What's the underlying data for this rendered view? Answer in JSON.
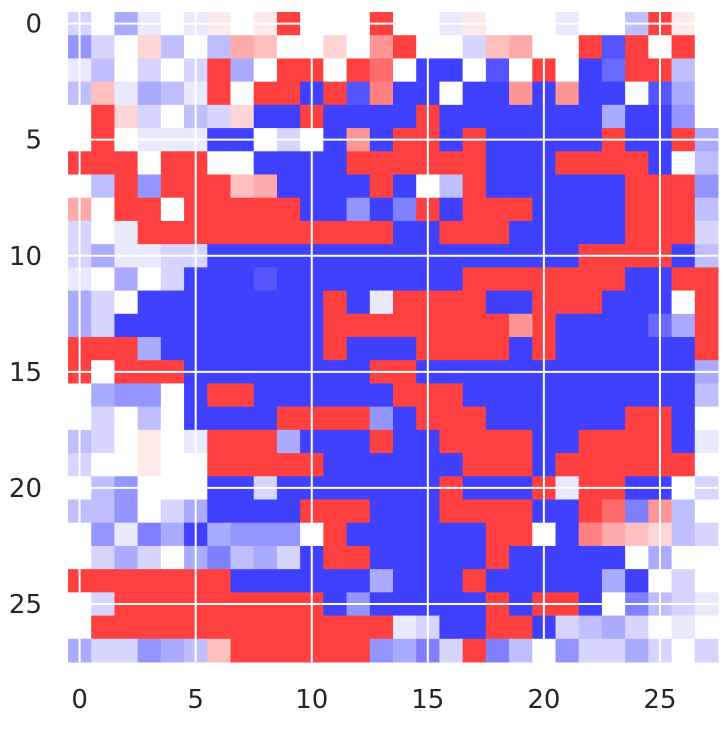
{
  "chart_data": {
    "type": "heatmap",
    "title": "",
    "xlabel": "",
    "ylabel": "",
    "colormap": "bwr",
    "vmin": -1,
    "vmax": 1,
    "grid": true,
    "grid_color": "#ffffff",
    "x_ticks": [
      0,
      5,
      10,
      15,
      20,
      25
    ],
    "x_tick_labels": [
      "0",
      "5",
      "10",
      "15",
      "20",
      "25"
    ],
    "y_ticks": [
      0,
      5,
      10,
      15,
      20,
      25
    ],
    "y_tick_labels": [
      "0",
      "5",
      "10",
      "15",
      "20",
      "25"
    ],
    "xlim": [
      -0.5,
      27.5
    ],
    "ylim": [
      27.5,
      -0.5
    ],
    "rows": 28,
    "cols": 28,
    "values": [
      [
        -0.2,
        0.0,
        -0.4,
        -0.1,
        0.0,
        -0.1,
        0.1,
        0.0,
        0.1,
        0.9,
        0.0,
        0.0,
        0.0,
        0.9,
        0.0,
        0.0,
        -0.1,
        0.1,
        0.0,
        0.0,
        0.0,
        -0.1,
        0.0,
        0.0,
        -0.3,
        0.9,
        0.1,
        0.0
      ],
      [
        -0.5,
        -0.2,
        0.0,
        0.2,
        -0.3,
        0.0,
        -0.3,
        0.4,
        0.3,
        0.0,
        0.0,
        0.2,
        0.0,
        0.5,
        0.9,
        0.0,
        0.0,
        -0.2,
        0.3,
        0.4,
        0.0,
        0.0,
        0.9,
        -0.8,
        0.9,
        0.0,
        0.9,
        0.0
      ],
      [
        -0.1,
        -0.3,
        0.0,
        -0.2,
        0.0,
        -0.2,
        0.9,
        -0.4,
        0.0,
        0.9,
        0.9,
        0.0,
        0.9,
        0.7,
        0.0,
        -0.9,
        -0.9,
        0.0,
        -0.8,
        0.0,
        0.9,
        0.0,
        -0.9,
        -0.7,
        0.9,
        0.9,
        -0.3,
        0.0
      ],
      [
        -0.3,
        0.3,
        -0.1,
        -0.4,
        -0.3,
        -0.1,
        0.9,
        0.0,
        0.9,
        0.9,
        -0.9,
        0.9,
        -0.8,
        0.6,
        -0.9,
        -0.9,
        0.0,
        -0.9,
        -0.9,
        0.5,
        -0.9,
        0.5,
        -0.9,
        -0.9,
        0.0,
        -0.8,
        -0.4,
        0.0
      ],
      [
        0.0,
        0.9,
        0.2,
        -0.2,
        0.0,
        -0.3,
        -0.2,
        0.2,
        -0.9,
        -0.9,
        0.9,
        -0.9,
        -0.9,
        -0.9,
        -0.9,
        0.9,
        -0.9,
        -0.9,
        -0.9,
        -0.9,
        -0.9,
        -0.9,
        -0.9,
        -0.4,
        -0.9,
        -0.9,
        -0.5,
        0.0
      ],
      [
        0.0,
        0.9,
        0.0,
        -0.1,
        -0.1,
        -0.1,
        -0.9,
        -0.9,
        0.0,
        -0.2,
        0.0,
        -0.9,
        0.5,
        -0.9,
        0.9,
        0.9,
        -0.9,
        0.9,
        -0.9,
        -0.9,
        -0.9,
        -0.9,
        -0.9,
        0.9,
        -0.9,
        -0.9,
        0.9,
        -0.4
      ],
      [
        0.9,
        0.9,
        0.9,
        0.0,
        0.9,
        0.9,
        0.0,
        0.0,
        -0.9,
        -0.9,
        -0.9,
        -0.9,
        0.9,
        0.9,
        0.9,
        0.9,
        0.9,
        0.9,
        -0.9,
        -0.9,
        -0.9,
        0.9,
        0.9,
        0.9,
        0.9,
        -0.9,
        0.0,
        -0.3
      ],
      [
        0.0,
        -0.3,
        0.9,
        -0.5,
        0.9,
        0.9,
        0.9,
        0.3,
        0.4,
        -0.9,
        -0.9,
        -0.9,
        -0.9,
        0.9,
        -0.9,
        0.0,
        -0.3,
        0.9,
        -0.9,
        -0.9,
        -0.9,
        -0.9,
        -0.9,
        -0.9,
        0.9,
        0.9,
        0.9,
        -0.5
      ],
      [
        0.4,
        0.0,
        0.9,
        0.9,
        0.0,
        0.9,
        0.9,
        0.9,
        0.9,
        0.9,
        -0.9,
        -0.9,
        -0.5,
        -0.9,
        -0.6,
        0.9,
        -0.9,
        0.9,
        0.9,
        0.9,
        -0.9,
        -0.9,
        -0.9,
        -0.9,
        0.9,
        0.9,
        0.9,
        -0.3
      ],
      [
        -0.2,
        0.0,
        -0.1,
        0.9,
        0.9,
        0.9,
        0.9,
        0.9,
        0.9,
        0.9,
        0.9,
        0.9,
        0.9,
        0.9,
        -0.9,
        -0.9,
        0.9,
        0.9,
        0.9,
        -0.9,
        -0.9,
        -0.9,
        -0.9,
        -0.9,
        0.9,
        0.9,
        0.9,
        -0.2
      ],
      [
        -0.2,
        -0.4,
        -0.1,
        -0.1,
        -0.2,
        -0.2,
        -0.9,
        -0.9,
        -0.9,
        -0.9,
        -0.9,
        -0.9,
        -0.9,
        -0.9,
        -0.9,
        -0.9,
        -0.9,
        -0.9,
        -0.9,
        -0.9,
        -0.9,
        -0.9,
        0.9,
        0.9,
        0.9,
        0.9,
        -0.9,
        -0.3
      ],
      [
        -0.1,
        0.0,
        -0.4,
        0.0,
        -0.2,
        -0.9,
        -0.9,
        -0.9,
        -0.8,
        -0.9,
        -0.9,
        -0.9,
        -0.9,
        -0.9,
        -0.9,
        -0.9,
        -0.9,
        0.9,
        0.9,
        0.9,
        0.9,
        0.9,
        0.9,
        0.9,
        -0.9,
        -0.9,
        0.9,
        0.9
      ],
      [
        -0.4,
        -0.2,
        0.0,
        -0.9,
        -0.9,
        -0.9,
        -0.9,
        -0.9,
        -0.9,
        -0.9,
        -0.9,
        0.9,
        -0.9,
        -0.1,
        0.9,
        0.9,
        0.9,
        0.9,
        -0.9,
        -0.9,
        0.9,
        0.9,
        0.9,
        -0.9,
        -0.9,
        -0.9,
        0.0,
        0.9
      ],
      [
        -0.4,
        -0.2,
        -0.9,
        -0.9,
        -0.9,
        -0.9,
        -0.9,
        -0.9,
        -0.9,
        -0.9,
        -0.9,
        0.9,
        0.9,
        0.9,
        0.9,
        0.9,
        0.9,
        0.9,
        0.9,
        0.5,
        0.9,
        -0.9,
        -0.9,
        -0.9,
        -0.9,
        -0.7,
        -0.4,
        0.9
      ],
      [
        0.9,
        0.9,
        0.9,
        -0.4,
        -0.9,
        -0.9,
        -0.9,
        -0.9,
        -0.9,
        -0.9,
        -0.9,
        0.9,
        -0.9,
        -0.9,
        -0.9,
        0.9,
        0.9,
        0.9,
        0.9,
        -0.9,
        0.9,
        -0.9,
        -0.9,
        -0.9,
        -0.9,
        -0.9,
        -0.9,
        0.9
      ],
      [
        0.9,
        0.0,
        0.9,
        0.9,
        0.9,
        -0.9,
        -0.9,
        -0.9,
        -0.9,
        -0.9,
        -0.9,
        -0.9,
        -0.9,
        0.9,
        0.9,
        -0.9,
        -0.9,
        -0.9,
        -0.9,
        -0.9,
        -0.9,
        -0.9,
        -0.9,
        -0.9,
        -0.9,
        -0.9,
        -0.9,
        -0.4
      ],
      [
        0.0,
        -0.4,
        -0.5,
        -0.5,
        0.0,
        -0.9,
        0.9,
        0.9,
        -0.9,
        -0.9,
        -0.9,
        -0.9,
        -0.9,
        -0.9,
        0.9,
        0.9,
        0.9,
        -0.9,
        -0.9,
        -0.9,
        -0.9,
        -0.9,
        -0.9,
        -0.9,
        -0.9,
        -0.9,
        -0.9,
        -0.3
      ],
      [
        0.0,
        -0.2,
        0.0,
        -0.3,
        0.0,
        -0.9,
        -0.9,
        -0.9,
        -0.9,
        0.9,
        0.9,
        0.9,
        0.9,
        -0.5,
        -0.9,
        0.9,
        0.9,
        0.9,
        -0.9,
        -0.9,
        -0.9,
        -0.9,
        -0.9,
        -0.9,
        0.9,
        0.9,
        -0.9,
        0.0
      ],
      [
        -0.3,
        -0.2,
        0.0,
        0.1,
        0.0,
        -0.1,
        0.9,
        0.9,
        0.9,
        -0.4,
        -0.9,
        -0.9,
        -0.9,
        0.9,
        -0.9,
        -0.9,
        0.9,
        0.9,
        0.9,
        0.9,
        -0.9,
        -0.9,
        0.9,
        0.9,
        0.9,
        0.9,
        -0.9,
        -0.1
      ],
      [
        -0.2,
        0.0,
        0.0,
        0.1,
        0.0,
        0.0,
        0.9,
        0.9,
        0.9,
        0.9,
        0.9,
        -0.9,
        -0.9,
        -0.9,
        -0.9,
        -0.9,
        -0.9,
        0.9,
        0.9,
        0.9,
        -0.9,
        0.9,
        0.9,
        0.9,
        0.9,
        0.9,
        0.9,
        0.0
      ],
      [
        0.0,
        -0.3,
        -0.5,
        0.0,
        0.0,
        0.0,
        -0.9,
        -0.9,
        -0.2,
        -0.9,
        -0.9,
        -0.9,
        -0.9,
        -0.9,
        -0.9,
        -0.9,
        0.9,
        -0.9,
        -0.9,
        -0.9,
        0.9,
        -0.1,
        0.9,
        0.9,
        -0.9,
        -0.9,
        0.0,
        -0.2
      ],
      [
        -0.3,
        -0.3,
        -0.5,
        0.0,
        -0.2,
        -0.4,
        -0.9,
        -0.9,
        -0.9,
        -0.9,
        0.9,
        0.9,
        0.9,
        -0.9,
        -0.9,
        -0.9,
        0.9,
        0.9,
        0.9,
        0.9,
        -0.9,
        -0.9,
        0.9,
        0.7,
        -0.6,
        0.5,
        -0.3,
        0.0
      ],
      [
        0.0,
        -0.5,
        -0.1,
        -0.6,
        -0.4,
        -0.9,
        -0.4,
        -0.5,
        -0.5,
        -0.5,
        0.0,
        0.9,
        -0.9,
        -0.9,
        -0.9,
        -0.9,
        -0.9,
        -0.9,
        0.9,
        0.9,
        0.0,
        -0.9,
        0.6,
        0.4,
        0.3,
        0.2,
        -0.3,
        -0.2
      ],
      [
        0.0,
        -0.2,
        -0.4,
        -0.2,
        0.0,
        -0.4,
        -0.6,
        -0.3,
        -0.4,
        -0.2,
        -0.9,
        0.9,
        0.9,
        -0.9,
        -0.9,
        -0.9,
        -0.9,
        -0.9,
        0.9,
        -0.9,
        -0.9,
        -0.9,
        -0.9,
        -0.9,
        0.0,
        -0.4,
        0.0,
        0.0
      ],
      [
        0.9,
        0.9,
        0.9,
        0.9,
        0.9,
        0.9,
        0.9,
        -0.9,
        -0.9,
        -0.9,
        -0.9,
        -0.9,
        -0.9,
        -0.4,
        -0.9,
        -0.9,
        -0.9,
        0.9,
        -0.9,
        -0.9,
        -0.9,
        -0.9,
        -0.9,
        -0.4,
        -0.9,
        0.0,
        -0.2,
        0.0
      ],
      [
        0.0,
        -0.2,
        0.9,
        0.9,
        0.9,
        0.9,
        0.9,
        0.9,
        0.9,
        0.9,
        0.9,
        -0.9,
        -0.5,
        -0.9,
        -0.9,
        -0.9,
        -0.9,
        -0.9,
        0.9,
        -0.9,
        0.9,
        0.9,
        -0.9,
        0.0,
        -0.6,
        -0.3,
        -0.2,
        -0.1
      ],
      [
        0.0,
        0.9,
        0.9,
        0.9,
        0.9,
        0.9,
        0.9,
        0.9,
        0.9,
        0.9,
        0.9,
        0.9,
        0.9,
        0.9,
        -0.1,
        -0.2,
        -0.9,
        -0.9,
        0.9,
        0.9,
        -0.9,
        -0.2,
        -0.3,
        -0.4,
        -0.2,
        0.0,
        -0.1,
        0.0
      ],
      [
        -0.4,
        -0.2,
        -0.2,
        -0.5,
        -0.4,
        -0.3,
        0.3,
        0.9,
        0.9,
        0.9,
        0.9,
        0.9,
        0.9,
        -0.5,
        -0.4,
        -0.6,
        -0.2,
        0.9,
        -0.6,
        -0.3,
        0.0,
        -0.5,
        -0.2,
        -0.2,
        -0.4,
        -0.2,
        0.0,
        -0.2
      ]
    ]
  }
}
